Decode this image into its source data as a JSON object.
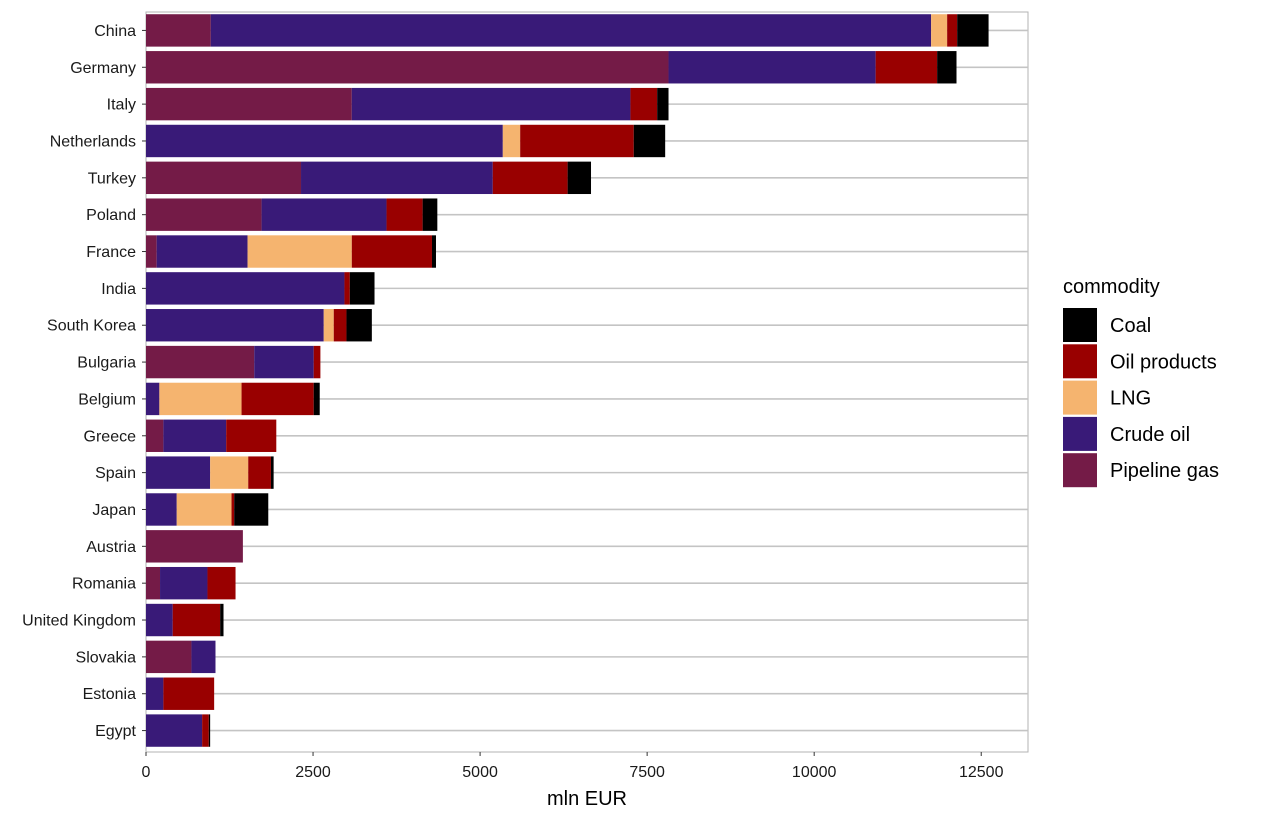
{
  "chart_data": {
    "type": "bar",
    "orientation": "horizontal",
    "stacked": true,
    "xlabel": "mln EUR",
    "ylabel": "",
    "xlim": [
      0,
      13200
    ],
    "xticks": [
      0,
      2500,
      5000,
      7500,
      10000,
      12500
    ],
    "grid": true,
    "legend": {
      "title": "commodity",
      "position": "right",
      "entries": [
        "Coal",
        "Oil products",
        "LNG",
        "Crude oil",
        "Pipeline gas"
      ]
    },
    "colors": {
      "Pipeline gas": "#741b47",
      "Crude oil": "#391a78",
      "LNG": "#f5b46f",
      "Oil products": "#990000",
      "Coal": "#000000"
    },
    "stack_order": [
      "Pipeline gas",
      "Crude oil",
      "LNG",
      "Oil products",
      "Coal"
    ],
    "categories": [
      "China",
      "Germany",
      "Italy",
      "Netherlands",
      "Turkey",
      "Poland",
      "France",
      "India",
      "South Korea",
      "Bulgaria",
      "Belgium",
      "Greece",
      "Spain",
      "Japan",
      "Austria",
      "Romania",
      "United Kingdom",
      "Slovakia",
      "Estonia",
      "Egypt"
    ],
    "series": [
      {
        "name": "Pipeline gas",
        "values": [
          970,
          7820,
          3080,
          0,
          2320,
          1730,
          160,
          0,
          0,
          1620,
          0,
          260,
          0,
          0,
          1450,
          210,
          0,
          680,
          0,
          0
        ]
      },
      {
        "name": "Crude oil",
        "values": [
          10780,
          3100,
          4170,
          5340,
          2870,
          1870,
          1360,
          2970,
          2660,
          890,
          200,
          940,
          960,
          460,
          0,
          710,
          400,
          360,
          260,
          840
        ]
      },
      {
        "name": "LNG",
        "values": [
          240,
          0,
          0,
          260,
          0,
          0,
          1560,
          0,
          150,
          0,
          1230,
          0,
          570,
          820,
          0,
          0,
          0,
          0,
          0,
          0
        ]
      },
      {
        "name": "Oil products",
        "values": [
          150,
          920,
          400,
          1700,
          1120,
          540,
          1200,
          80,
          190,
          100,
          1080,
          750,
          340,
          40,
          0,
          420,
          710,
          0,
          760,
          100
        ]
      },
      {
        "name": "Coal",
        "values": [
          470,
          290,
          170,
          470,
          350,
          220,
          60,
          370,
          380,
          0,
          90,
          0,
          40,
          510,
          0,
          0,
          50,
          0,
          0,
          20
        ]
      }
    ]
  }
}
